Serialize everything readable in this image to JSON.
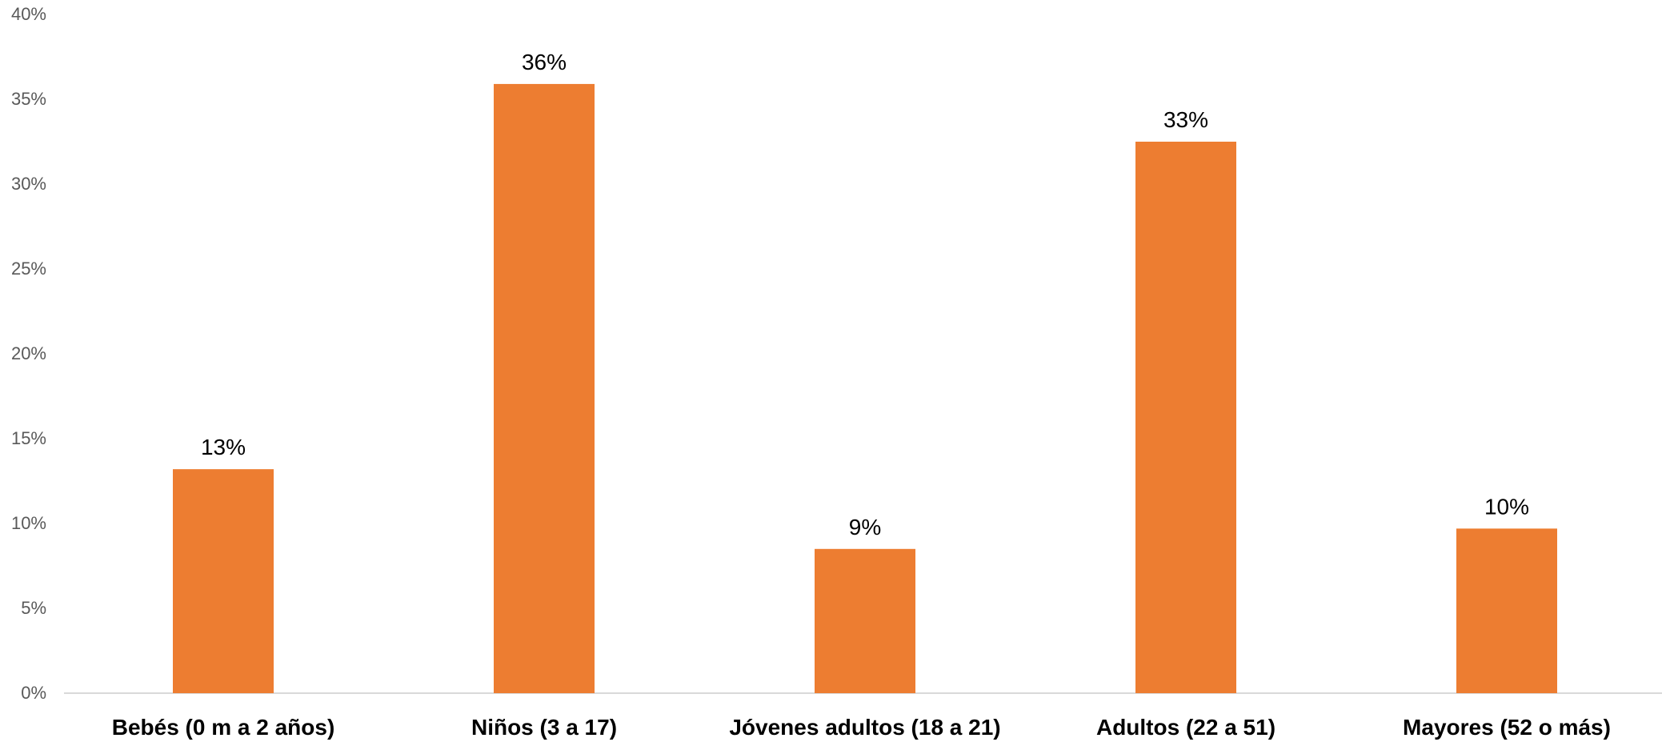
{
  "chart_data": {
    "type": "bar",
    "categories": [
      "Bebés (0 m a 2 años)",
      "Niños (3 a 17)",
      "Jóvenes adultos (18 a 21)",
      "Adultos (22 a 51)",
      "Mayores (52 o más)"
    ],
    "values": [
      13.2,
      35.9,
      8.5,
      32.5,
      9.7
    ],
    "data_labels": [
      "13%",
      "36%",
      "9%",
      "33%",
      "10%"
    ],
    "ylim": [
      0,
      40
    ],
    "y_ticks": [
      "0%",
      "5%",
      "10%",
      "15%",
      "20%",
      "25%",
      "30%",
      "35%",
      "40%"
    ],
    "title": "",
    "xlabel": "",
    "ylabel": "",
    "grid": false,
    "legend": "none",
    "bar_color": "#ED7D31",
    "axis_color": "#D9D9D9"
  }
}
